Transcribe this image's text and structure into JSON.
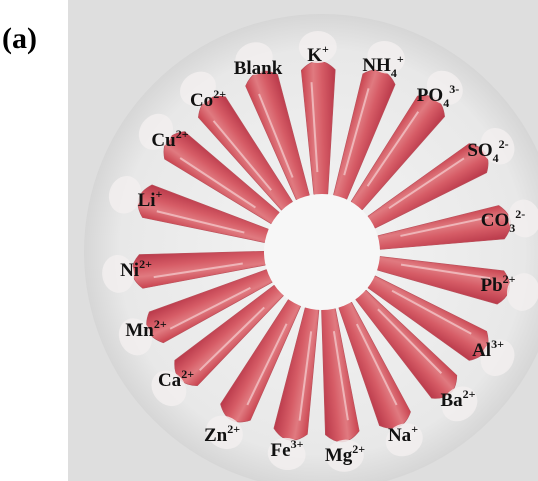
{
  "panel_label": "(a)",
  "tubes": [
    {
      "base": "Blank"
    },
    {
      "base": "K",
      "sup": "+"
    },
    {
      "base": "NH",
      "sub": "4",
      "sup": "+"
    },
    {
      "base": "PO",
      "sub": "4",
      "sup": "3-"
    },
    {
      "base": "SO",
      "sub": "4",
      "sup": "2-"
    },
    {
      "base": "CO",
      "sub": "3",
      "sup": "2-"
    },
    {
      "base": "Pb",
      "sup": "2+"
    },
    {
      "base": "Al",
      "sup": "3+"
    },
    {
      "base": "Ba",
      "sup": "2+"
    },
    {
      "base": "Na",
      "sup": "+"
    },
    {
      "base": "Mg",
      "sup": "2+"
    },
    {
      "base": "Fe",
      "sup": "3+"
    },
    {
      "base": "Zn",
      "sup": "2+"
    },
    {
      "base": "Ca",
      "sup": "2+"
    },
    {
      "base": "Mn",
      "sup": "2+"
    },
    {
      "base": "Ni",
      "sup": "2+"
    },
    {
      "base": "Li",
      "sup": "+"
    },
    {
      "base": "Cu",
      "sup": "2+"
    },
    {
      "base": "Co",
      "sup": "2+"
    }
  ]
}
